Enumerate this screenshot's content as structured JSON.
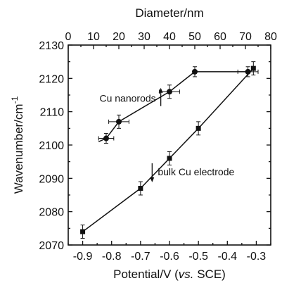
{
  "chart_data": {
    "type": "scatter",
    "title": "",
    "xlabel_prefix": "Potential/V (",
    "xlabel_italic": "vs.",
    "xlabel_suffix": " SCE)",
    "x2label": "Diameter/nm",
    "ylabel": "Wavenumber/cm",
    "ylabel_sup": "-1",
    "xlim": [
      -0.95,
      -0.25
    ],
    "x2lim": [
      0,
      80
    ],
    "ylim": [
      2070,
      2130
    ],
    "x_ticks": [
      -0.9,
      -0.8,
      -0.7,
      -0.6,
      -0.5,
      -0.4,
      -0.3
    ],
    "x_tick_labels": [
      "-0.9",
      "-0.8",
      "-0.7",
      "-0.6",
      "-0.5",
      "-0.4",
      "-0.3"
    ],
    "x2_ticks": [
      0,
      10,
      20,
      30,
      40,
      50,
      60,
      70,
      80
    ],
    "x2_tick_labels": [
      "0",
      "10",
      "20",
      "30",
      "40",
      "50",
      "60",
      "70",
      "80"
    ],
    "y_ticks": [
      2070,
      2080,
      2090,
      2100,
      2110,
      2120,
      2130
    ],
    "y_tick_labels": [
      "2070",
      "2080",
      "2090",
      "2100",
      "2110",
      "2120",
      "2130"
    ],
    "grid": false,
    "series": [
      {
        "marker": "circle",
        "x_axis": "top",
        "x": [
          15,
          20,
          40,
          50,
          71
        ],
        "y": [
          2102,
          2107,
          2116,
          2122,
          2122
        ],
        "x_err": [
          3,
          4,
          4,
          0,
          4
        ],
        "y_err": [
          1.5,
          2,
          2,
          1.5,
          1.5
        ],
        "line_start": [
          12,
          2101
        ]
      },
      {
        "marker": "square",
        "x_axis": "bottom",
        "x": [
          -0.9,
          -0.7,
          -0.6,
          -0.5,
          -0.31
        ],
        "y": [
          2074,
          2087,
          2096,
          2105,
          2123
        ],
        "y_err": [
          2,
          2,
          2,
          2,
          2
        ]
      }
    ],
    "annotations": [
      {
        "text": "Cu nanorods",
        "arrow": "up",
        "x": -0.63,
        "y": 2114
      },
      {
        "text": "bulk Cu electrode",
        "arrow": "down",
        "x": -0.66,
        "y": 2092
      }
    ]
  }
}
